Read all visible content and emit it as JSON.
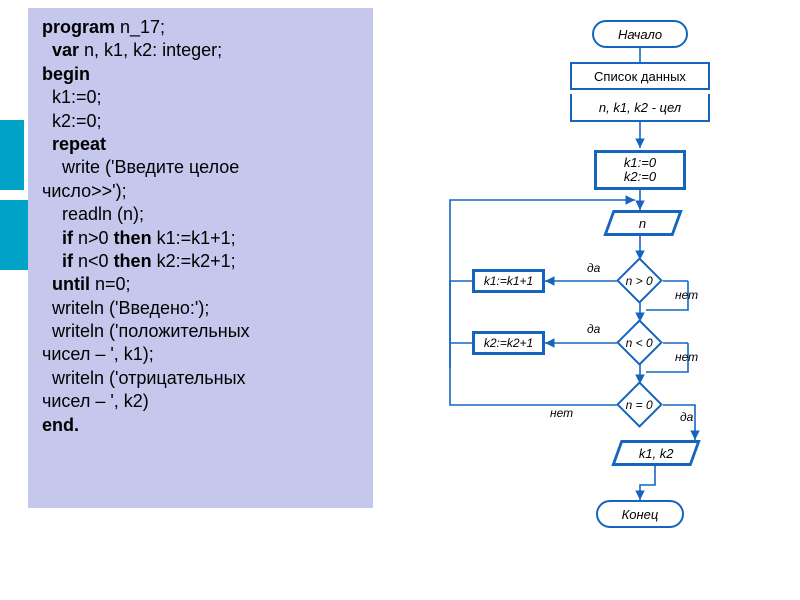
{
  "code": {
    "background": "#c5c7ec",
    "font_size": 18,
    "lines": [
      {
        "indent": 0,
        "spans": [
          {
            "t": "program ",
            "b": true
          },
          {
            "t": "n_17;",
            "b": false
          }
        ]
      },
      {
        "indent": 1,
        "spans": [
          {
            "t": "var ",
            "b": true
          },
          {
            "t": "n, k1, k2: integer;",
            "b": false
          }
        ]
      },
      {
        "indent": 0,
        "spans": [
          {
            "t": "begin",
            "b": true
          }
        ]
      },
      {
        "indent": 1,
        "spans": [
          {
            "t": "k1:=0;",
            "b": false
          }
        ]
      },
      {
        "indent": 1,
        "spans": [
          {
            "t": "k2:=0;",
            "b": false
          }
        ]
      },
      {
        "indent": 1,
        "spans": [
          {
            "t": "repeat",
            "b": true
          }
        ]
      },
      {
        "indent": 2,
        "spans": [
          {
            "t": "write ('Введите целое",
            "b": false
          }
        ]
      },
      {
        "indent": 0,
        "spans": [
          {
            "t": "число>>');",
            "b": false
          }
        ]
      },
      {
        "indent": 2,
        "spans": [
          {
            "t": "readln (n);",
            "b": false
          }
        ]
      },
      {
        "indent": 2,
        "spans": [
          {
            "t": "if ",
            "b": true
          },
          {
            "t": "n>0 ",
            "b": false
          },
          {
            "t": "then ",
            "b": true
          },
          {
            "t": "k1:=k1+1;",
            "b": false
          }
        ]
      },
      {
        "indent": 2,
        "spans": [
          {
            "t": "if ",
            "b": true
          },
          {
            "t": "n<0 ",
            "b": false
          },
          {
            "t": "then ",
            "b": true
          },
          {
            "t": "k2:=k2+1;",
            "b": false
          }
        ]
      },
      {
        "indent": 1,
        "spans": [
          {
            "t": "until ",
            "b": true
          },
          {
            "t": "n=0;",
            "b": false
          }
        ]
      },
      {
        "indent": 1,
        "spans": [
          {
            "t": "writeln ('Введено:');",
            "b": false
          }
        ]
      },
      {
        "indent": 1,
        "spans": [
          {
            "t": "writeln ('положительных",
            "b": false
          }
        ]
      },
      {
        "indent": 0,
        "spans": [
          {
            "t": "чисел – ', k1);",
            "b": false
          }
        ]
      },
      {
        "indent": 1,
        "spans": [
          {
            "t": "writeln ('отрицательных",
            "b": false
          }
        ]
      },
      {
        "indent": 0,
        "spans": [
          {
            "t": "чисел – ', k2)",
            "b": false
          }
        ]
      },
      {
        "indent": 0,
        "spans": [
          {
            "t": "end.",
            "b": true
          }
        ]
      }
    ]
  },
  "flow": {
    "border_color": "#1565c0",
    "text_color": "#000000",
    "font_size": 13,
    "label_font_size": 12,
    "nodes": {
      "start": {
        "label": "Начало"
      },
      "datahdr": {
        "label": "Список данных"
      },
      "datavar": {
        "label": "n, k1, k2 - цел"
      },
      "init": {
        "line1": "k1:=0",
        "line2": "k2:=0"
      },
      "in_n": {
        "label": "n"
      },
      "d1": {
        "label": "n > 0"
      },
      "d2": {
        "label": "n < 0"
      },
      "d3": {
        "label": "n = 0"
      },
      "k1inc": {
        "label": "k1:=k1+1"
      },
      "k2inc": {
        "label": "k2:=k2+1"
      },
      "out": {
        "label": "k1, k2"
      },
      "end": {
        "label": "Конец"
      }
    },
    "labels": {
      "yes": "да",
      "no": "нет"
    }
  },
  "teal": {
    "color": "#00a2c7"
  }
}
